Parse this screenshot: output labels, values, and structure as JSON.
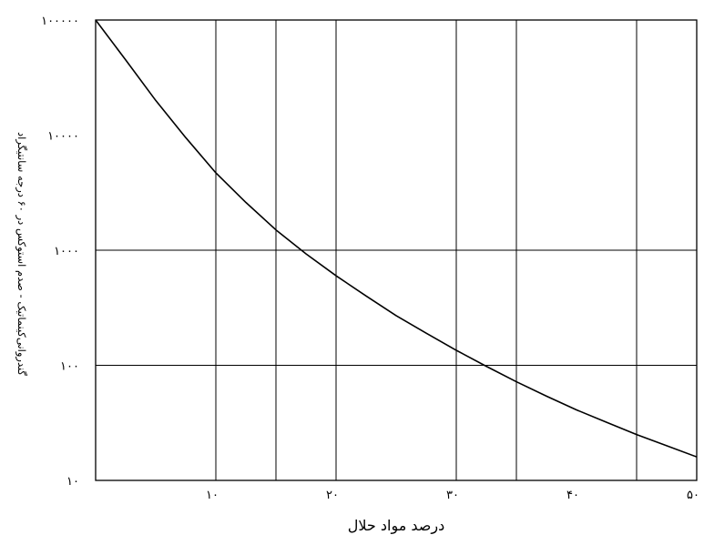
{
  "chart_data": {
    "type": "line",
    "xlabel": "درصد مواد حلال",
    "ylabel": "گندروانی‌کینماتیک - صدم استوکس در ۶۰ درجه سانتیگراد",
    "x_scale": "linear",
    "y_scale": "log",
    "xlim": [
      0,
      50
    ],
    "ylim": [
      10,
      100000
    ],
    "x_ticks": [
      10,
      20,
      30,
      40,
      50
    ],
    "x_tick_labels": [
      "۱۰",
      "۲۰",
      "۳۰",
      "۴۰",
      "۵۰"
    ],
    "y_ticks": [
      10,
      100,
      1000,
      10000,
      100000
    ],
    "y_tick_labels": [
      "۱۰",
      "۱۰۰",
      "۱۰۰۰",
      "۱۰۰۰۰",
      "۱۰۰۰۰۰"
    ],
    "x_grid": [
      10,
      15,
      20,
      30,
      35,
      45
    ],
    "y_grid": [
      100,
      1000
    ],
    "series": [
      {
        "color": "#000000",
        "x": [
          0,
          2.5,
          5,
          7.5,
          10,
          12.5,
          15,
          17.5,
          20,
          22.5,
          25,
          27.5,
          30,
          32.5,
          35,
          37.5,
          40,
          42.5,
          45,
          47.5,
          50
        ],
        "y": [
          100000,
          45000,
          20000,
          9500,
          4700,
          2600,
          1500,
          930,
          600,
          400,
          270,
          190,
          135,
          98,
          72,
          54,
          41,
          32,
          25,
          20,
          16
        ]
      }
    ]
  }
}
